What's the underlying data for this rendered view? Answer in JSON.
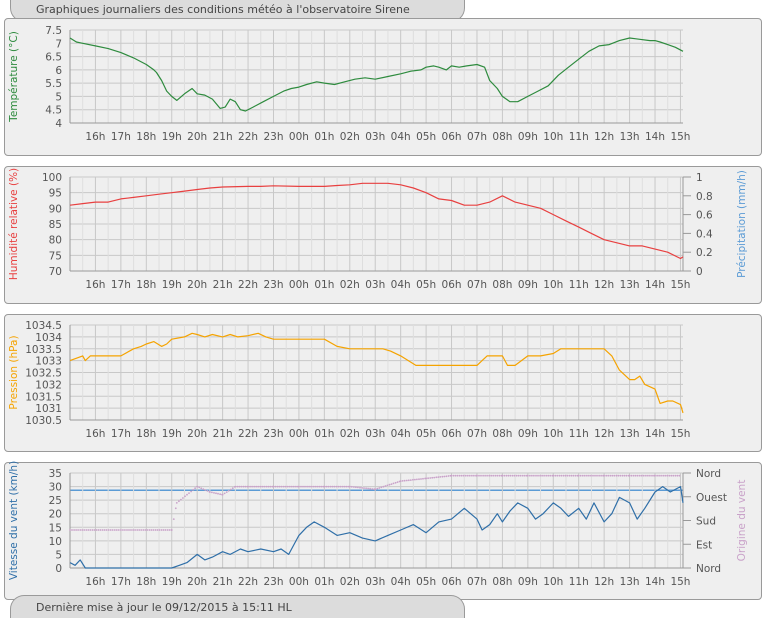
{
  "header": {
    "title": "Graphiques journaliers des conditions météo à l'observatoire Sirene"
  },
  "footer": {
    "last_update": "Dernière mise à jour le 09/12/2015 à 15:11 HL"
  },
  "colors": {
    "temperature": "#2e8b3e",
    "humidity": "#e84040",
    "precipitation": "#5b9bd5",
    "pressure": "#f5a300",
    "wind_speed": "#2f6fa8",
    "wind_dir": "#c9a2c9",
    "grid": "#c8c8c8",
    "axis_text": "#555555"
  },
  "chart_data": [
    {
      "type": "line",
      "ylabel": "Température (°C)",
      "ylim": [
        4,
        7.5
      ],
      "y_ticks": [
        "7.5",
        "7",
        "6.5",
        "6",
        "5.5",
        "5",
        "4.5",
        "4"
      ],
      "x_ticks": [
        "16h",
        "17h",
        "18h",
        "19h",
        "20h",
        "21h",
        "22h",
        "23h",
        "00h",
        "01h",
        "02h",
        "03h",
        "04h",
        "05h",
        "06h",
        "07h",
        "08h",
        "09h",
        "10h",
        "11h",
        "12h",
        "13h",
        "14h",
        "15h"
      ],
      "series": [
        {
          "name": "",
          "x": [
            15.0,
            15.25,
            15.5,
            16.0,
            16.5,
            17.0,
            17.5,
            18.0,
            18.3,
            18.4,
            18.6,
            18.8,
            19.0,
            19.2,
            19.5,
            19.8,
            20.0,
            20.3,
            20.6,
            20.9,
            21.1,
            21.3,
            21.5,
            21.7,
            21.9,
            22.2,
            22.6,
            23.0,
            23.4,
            23.7,
            24.0,
            24.3,
            24.7,
            25.0,
            25.4,
            25.8,
            26.2,
            26.6,
            27.0,
            27.5,
            28.0,
            28.4,
            28.8,
            29.0,
            29.3,
            29.5,
            29.8,
            30.0,
            30.3,
            30.6,
            31.0,
            31.3,
            31.5,
            31.8,
            32.0,
            32.3,
            32.6,
            33.0,
            33.4,
            33.8,
            34.2,
            34.6,
            35.0,
            35.4,
            35.8,
            36.2,
            36.6,
            37.0,
            37.4,
            37.8,
            38.0,
            38.2,
            38.5,
            38.8,
            39.1
          ],
          "y": [
            7.2,
            7.05,
            7.0,
            6.9,
            6.8,
            6.65,
            6.45,
            6.2,
            6.0,
            5.9,
            5.6,
            5.2,
            5.0,
            4.85,
            5.1,
            5.3,
            5.1,
            5.05,
            4.9,
            4.55,
            4.6,
            4.9,
            4.8,
            4.5,
            4.45,
            4.6,
            4.8,
            5.0,
            5.2,
            5.3,
            5.35,
            5.45,
            5.55,
            5.5,
            5.45,
            5.55,
            5.65,
            5.7,
            5.65,
            5.75,
            5.85,
            5.95,
            6.0,
            6.1,
            6.15,
            6.1,
            6.0,
            6.15,
            6.1,
            6.15,
            6.2,
            6.1,
            5.6,
            5.3,
            5.0,
            4.8,
            4.8,
            5.0,
            5.2,
            5.4,
            5.8,
            6.1,
            6.4,
            6.7,
            6.9,
            6.95,
            7.1,
            7.2,
            7.15,
            7.1,
            7.1,
            7.05,
            6.95,
            6.85,
            6.7
          ]
        }
      ]
    },
    {
      "type": "line",
      "ylabel": "Humidité relative (%)",
      "ylabel_right": "Précipitation (mm/h)",
      "ylim": [
        70,
        100
      ],
      "ylim_right": [
        0,
        1
      ],
      "y_ticks": [
        "100",
        "95",
        "90",
        "85",
        "80",
        "75",
        "70"
      ],
      "y_ticks_right": [
        "1",
        "0.8",
        "0.6",
        "0.4",
        "0.2",
        "0"
      ],
      "x_ticks": [
        "16h",
        "17h",
        "18h",
        "19h",
        "20h",
        "21h",
        "22h",
        "23h",
        "00h",
        "01h",
        "02h",
        "03h",
        "04h",
        "05h",
        "06h",
        "07h",
        "08h",
        "09h",
        "10h",
        "11h",
        "12h",
        "13h",
        "14h",
        "15h"
      ],
      "series": [
        {
          "name": "",
          "x": [
            15.0,
            15.5,
            16.0,
            16.5,
            17.0,
            17.5,
            18.0,
            18.5,
            19.0,
            19.5,
            20.0,
            20.5,
            21.0,
            22.0,
            22.5,
            23.0,
            24.0,
            25.0,
            25.5,
            26.0,
            26.5,
            27.0,
            27.5,
            28.0,
            28.5,
            29.0,
            29.5,
            30.0,
            30.5,
            31.0,
            31.5,
            32.0,
            32.5,
            33.0,
            33.5,
            34.0,
            34.5,
            35.0,
            35.5,
            36.0,
            36.5,
            37.0,
            37.5,
            38.0,
            38.5,
            39.0,
            39.1
          ],
          "y": [
            91,
            91.5,
            92,
            92,
            93,
            93.5,
            94,
            94.5,
            95,
            95.5,
            96,
            96.5,
            96.8,
            97,
            97,
            97.2,
            97,
            97,
            97.3,
            97.5,
            98,
            98,
            98,
            97.5,
            96.5,
            95,
            93,
            92.5,
            91,
            91,
            92,
            94,
            92,
            91,
            90,
            88,
            86,
            84,
            82,
            80,
            79,
            78,
            78,
            77,
            76,
            74,
            74.5
          ]
        },
        {
          "name": "",
          "x": [
            15.0,
            39.1
          ],
          "y": [
            0,
            0
          ]
        }
      ]
    },
    {
      "type": "line",
      "ylabel": "Pression (hPa)",
      "ylim": [
        1030.5,
        1034.5
      ],
      "y_ticks": [
        "1034.5",
        "1034",
        "1033.5",
        "1033",
        "1032.5",
        "1032",
        "1031.5",
        "1031",
        "1030.5"
      ],
      "x_ticks": [
        "16h",
        "17h",
        "18h",
        "19h",
        "20h",
        "21h",
        "22h",
        "23h",
        "00h",
        "01h",
        "02h",
        "03h",
        "04h",
        "05h",
        "06h",
        "07h",
        "08h",
        "09h",
        "10h",
        "11h",
        "12h",
        "13h",
        "14h",
        "15h"
      ],
      "series": [
        {
          "name": "",
          "x": [
            15.0,
            15.5,
            15.6,
            15.8,
            16.0,
            16.5,
            17.0,
            17.5,
            17.8,
            18.0,
            18.3,
            18.6,
            18.8,
            19.0,
            19.5,
            19.8,
            20.0,
            20.3,
            20.6,
            21.0,
            21.3,
            21.6,
            22.0,
            22.4,
            22.7,
            23.0,
            23.5,
            24.0,
            24.5,
            25.0,
            25.5,
            26.0,
            26.5,
            27.0,
            27.3,
            27.6,
            28.0,
            28.3,
            28.6,
            29.0,
            29.5,
            30.0,
            30.5,
            31.0,
            31.2,
            31.4,
            31.6,
            31.8,
            32.0,
            32.2,
            32.5,
            33.0,
            33.5,
            34.0,
            34.3,
            34.6,
            35.0,
            35.5,
            36.0,
            36.3,
            36.6,
            37.0,
            37.2,
            37.4,
            37.6,
            38.0,
            38.2,
            38.5,
            38.7,
            39.0,
            39.1
          ],
          "y": [
            1033,
            1033.2,
            1033.0,
            1033.2,
            1033.2,
            1033.2,
            1033.2,
            1033.5,
            1033.6,
            1033.7,
            1033.8,
            1033.6,
            1033.7,
            1033.9,
            1034.0,
            1034.15,
            1034.1,
            1034.0,
            1034.1,
            1034.0,
            1034.1,
            1034.0,
            1034.05,
            1034.15,
            1034.0,
            1033.9,
            1033.9,
            1033.9,
            1033.9,
            1033.9,
            1033.6,
            1033.5,
            1033.5,
            1033.5,
            1033.5,
            1033.4,
            1033.2,
            1033.0,
            1032.8,
            1032.8,
            1032.8,
            1032.8,
            1032.8,
            1032.8,
            1033.0,
            1033.2,
            1033.2,
            1033.2,
            1033.2,
            1032.8,
            1032.8,
            1033.2,
            1033.2,
            1033.3,
            1033.5,
            1033.5,
            1033.5,
            1033.5,
            1033.5,
            1033.2,
            1032.6,
            1032.2,
            1032.2,
            1032.35,
            1032.0,
            1031.8,
            1031.2,
            1031.3,
            1031.3,
            1031.15,
            1030.8
          ]
        }
      ]
    },
    {
      "type": "line",
      "ylabel": "Vitesse du vent (km/h)",
      "ylabel_right": "Origine du vent",
      "ylim": [
        0,
        35
      ],
      "y_ticks": [
        "35",
        "30",
        "25",
        "20",
        "15",
        "10",
        "5",
        "0"
      ],
      "y_ticks_right": [
        "Nord",
        "Ouest",
        "Sud",
        "Est",
        "Nord"
      ],
      "x_ticks": [
        "16h",
        "17h",
        "18h",
        "19h",
        "20h",
        "21h",
        "22h",
        "23h",
        "00h",
        "01h",
        "02h",
        "03h",
        "04h",
        "05h",
        "06h",
        "07h",
        "08h",
        "09h",
        "10h",
        "11h",
        "12h",
        "13h",
        "14h",
        "15h"
      ],
      "series": [
        {
          "name": "",
          "x": [
            15.0,
            15.2,
            15.4,
            15.6,
            16.0,
            17.0,
            18.0,
            19.0,
            19.3,
            19.6,
            20.0,
            20.3,
            20.6,
            21.0,
            21.3,
            21.7,
            22.0,
            22.5,
            23.0,
            23.3,
            23.6,
            24.0,
            24.3,
            24.6,
            25.0,
            25.5,
            26.0,
            26.5,
            27.0,
            27.5,
            28.0,
            28.5,
            29.0,
            29.5,
            30.0,
            30.5,
            31.0,
            31.2,
            31.5,
            31.8,
            32.0,
            32.3,
            32.6,
            33.0,
            33.3,
            33.6,
            34.0,
            34.3,
            34.6,
            35.0,
            35.3,
            35.6,
            36.0,
            36.3,
            36.6,
            37.0,
            37.3,
            37.6,
            38.0,
            38.3,
            38.6,
            39.0,
            39.1
          ],
          "y": [
            2,
            1,
            3,
            0,
            0,
            0,
            0,
            0,
            1,
            2,
            5,
            3,
            4,
            6,
            5,
            7,
            6,
            7,
            6,
            7,
            5,
            12,
            15,
            17,
            15,
            12,
            13,
            11,
            10,
            12,
            14,
            16,
            13,
            17,
            18,
            22,
            18,
            14,
            16,
            20,
            17,
            21,
            24,
            22,
            18,
            20,
            24,
            22,
            19,
            22,
            18,
            24,
            17,
            20,
            26,
            24,
            18,
            22,
            28,
            30,
            28,
            30,
            24
          ]
        },
        {
          "name": "",
          "x": [
            15.0,
            19.0,
            19.2,
            20.0,
            20.5,
            21.0,
            21.5,
            22.0,
            23.0,
            24.0,
            25.0,
            26.0,
            27.0,
            28.0,
            29.0,
            30.0,
            31.0,
            32.0,
            33.0,
            34.0,
            35.0,
            36.0,
            37.0,
            38.0,
            39.0
          ],
          "y": [
            14,
            14,
            24,
            30,
            28,
            27,
            30,
            30,
            30,
            30,
            30,
            30,
            29,
            32,
            33,
            34,
            34,
            34,
            34,
            34,
            34,
            34,
            34,
            34,
            34
          ]
        }
      ]
    }
  ]
}
